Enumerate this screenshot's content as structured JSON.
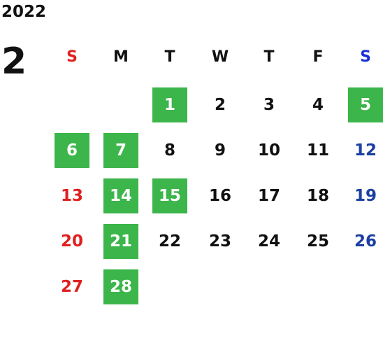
{
  "calendar": {
    "year": "2022",
    "month": "2",
    "weekdays": [
      "S",
      "M",
      "T",
      "W",
      "T",
      "F",
      "S"
    ],
    "weeks": [
      [
        "",
        "",
        "1",
        "2",
        "3",
        "4",
        "5"
      ],
      [
        "6",
        "7",
        "8",
        "9",
        "10",
        "11",
        "12"
      ],
      [
        "13",
        "14",
        "15",
        "16",
        "17",
        "18",
        "19"
      ],
      [
        "20",
        "21",
        "22",
        "23",
        "24",
        "25",
        "26"
      ],
      [
        "27",
        "28",
        "",
        "",
        "",
        "",
        ""
      ]
    ],
    "highlighted_days": [
      "1",
      "5",
      "6",
      "7",
      "14",
      "15",
      "21",
      "28"
    ],
    "colors": {
      "highlight": "#3cb54a",
      "sunday": "#e02020",
      "saturday": "#1a3fa0",
      "saturday_header": "#1a2fd8",
      "weekday": "#111111"
    }
  }
}
